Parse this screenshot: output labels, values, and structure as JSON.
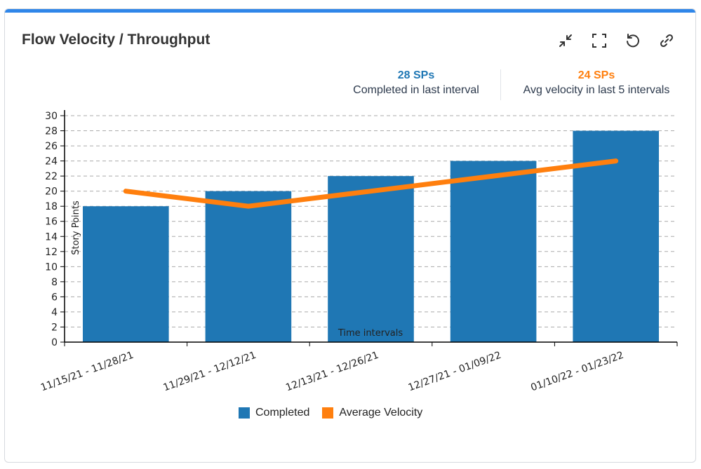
{
  "header": {
    "title": "Flow Velocity / Throughput",
    "icons": [
      "collapse-icon",
      "fullscreen-icon",
      "refresh-icon",
      "link-icon"
    ]
  },
  "stats": [
    {
      "value": "28 SPs",
      "label": "Completed in last interval",
      "color": "#1f77b4"
    },
    {
      "value": "24 SPs",
      "label": "Avg velocity in last 5 intervals",
      "color": "#ff7f0e"
    }
  ],
  "chart_data": {
    "type": "bar",
    "categories": [
      "11/15/21 - 11/28/21",
      "11/29/21 - 12/12/21",
      "12/13/21 - 12/26/21",
      "12/27/21 - 01/09/22",
      "01/10/22 - 01/23/22"
    ],
    "series": [
      {
        "name": "Completed",
        "type": "bar",
        "values": [
          18,
          20,
          22,
          24,
          28
        ],
        "color": "#1f77b4"
      },
      {
        "name": "Average Velocity",
        "type": "line",
        "values": [
          20,
          18,
          20,
          22,
          24
        ],
        "color": "#ff7f0e"
      }
    ],
    "xlabel": "Time intervals",
    "ylabel": "Story Points",
    "ylim": [
      0,
      30
    ],
    "yticks": [
      0,
      2,
      4,
      6,
      8,
      10,
      12,
      14,
      16,
      18,
      20,
      22,
      24,
      26,
      28,
      30
    ],
    "grid": true,
    "legend": "bottom"
  }
}
